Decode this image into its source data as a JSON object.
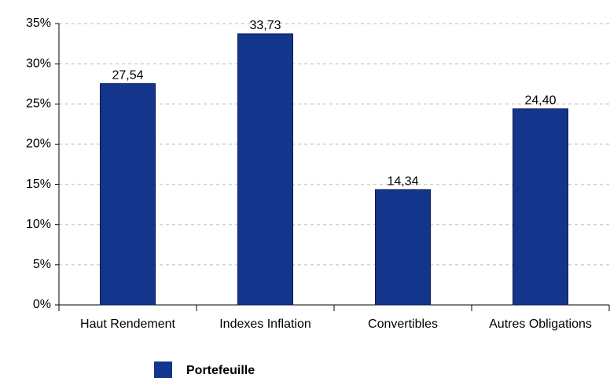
{
  "chart_data": {
    "type": "bar",
    "categories": [
      "Haut Rendement",
      "Indexes Inflation",
      "Convertibles",
      "Autres Obligations"
    ],
    "series": [
      {
        "name": "Portefeuille",
        "color": "#14358c",
        "values": [
          27.54,
          33.73,
          14.34,
          24.4
        ],
        "value_labels": [
          "27,54",
          "33,73",
          "14,34",
          "24,40"
        ]
      }
    ],
    "ylim": [
      0,
      35
    ],
    "yticks": [
      {
        "value": 0,
        "label": "0%"
      },
      {
        "value": 5,
        "label": "5%"
      },
      {
        "value": 10,
        "label": "10%"
      },
      {
        "value": 15,
        "label": "15%"
      },
      {
        "value": 20,
        "label": "20%"
      },
      {
        "value": 25,
        "label": "25%"
      },
      {
        "value": 30,
        "label": "30%"
      },
      {
        "value": 35,
        "label": "35%"
      }
    ],
    "grid": true
  }
}
